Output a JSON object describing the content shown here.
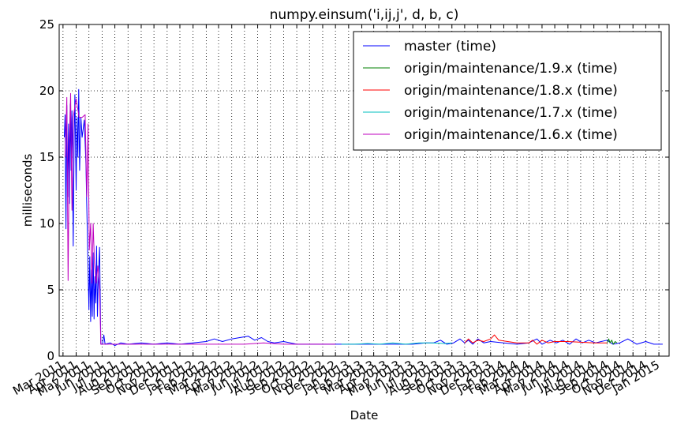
{
  "chart_data": {
    "type": "line",
    "title": "numpy.einsum('i,ij,j', d, b, c)",
    "xlabel": "Date",
    "ylabel": "milliseconds",
    "xlim": [
      "2011-02-20",
      "2015-01-25"
    ],
    "ylim": [
      0,
      25
    ],
    "yticks": [
      0,
      5,
      10,
      15,
      20,
      25
    ],
    "xticks": [
      {
        "date": "2011-03-01",
        "label": "Mar 2011"
      },
      {
        "date": "2011-04-01",
        "label": "Apr 2011"
      },
      {
        "date": "2011-05-01",
        "label": "May 2011"
      },
      {
        "date": "2011-06-01",
        "label": "Jun 2011"
      },
      {
        "date": "2011-07-01",
        "label": "Jul 2011"
      },
      {
        "date": "2011-08-01",
        "label": "Aug 2011"
      },
      {
        "date": "2011-09-01",
        "label": "Sep 2011"
      },
      {
        "date": "2011-10-01",
        "label": "Oct 2011"
      },
      {
        "date": "2011-11-01",
        "label": "Nov 2011"
      },
      {
        "date": "2011-12-01",
        "label": "Dec 2011"
      },
      {
        "date": "2012-01-01",
        "label": "Jan 2012"
      },
      {
        "date": "2012-02-01",
        "label": "Feb 2012"
      },
      {
        "date": "2012-03-01",
        "label": "Mar 2012"
      },
      {
        "date": "2012-04-01",
        "label": "Apr 2012"
      },
      {
        "date": "2012-05-01",
        "label": "May 2012"
      },
      {
        "date": "2012-06-01",
        "label": "Jun 2012"
      },
      {
        "date": "2012-07-01",
        "label": "Jul 2012"
      },
      {
        "date": "2012-08-01",
        "label": "Aug 2012"
      },
      {
        "date": "2012-09-01",
        "label": "Sep 2012"
      },
      {
        "date": "2012-10-01",
        "label": "Oct 2012"
      },
      {
        "date": "2012-11-01",
        "label": "Nov 2012"
      },
      {
        "date": "2012-12-01",
        "label": "Dec 2012"
      },
      {
        "date": "2013-01-01",
        "label": "Jan 2013"
      },
      {
        "date": "2013-02-01",
        "label": "Feb 2013"
      },
      {
        "date": "2013-03-01",
        "label": "Mar 2013"
      },
      {
        "date": "2013-04-01",
        "label": "Apr 2013"
      },
      {
        "date": "2013-05-01",
        "label": "May 2013"
      },
      {
        "date": "2013-06-01",
        "label": "Jun 2013"
      },
      {
        "date": "2013-07-01",
        "label": "Jul 2013"
      },
      {
        "date": "2013-08-01",
        "label": "Aug 2013"
      },
      {
        "date": "2013-09-01",
        "label": "Sep 2013"
      },
      {
        "date": "2013-10-01",
        "label": "Oct 2013"
      },
      {
        "date": "2013-11-01",
        "label": "Nov 2013"
      },
      {
        "date": "2013-12-01",
        "label": "Dec 2013"
      },
      {
        "date": "2014-01-01",
        "label": "Jan 2014"
      },
      {
        "date": "2014-02-01",
        "label": "Feb 2014"
      },
      {
        "date": "2014-03-01",
        "label": "Mar 2014"
      },
      {
        "date": "2014-04-01",
        "label": "Apr 2014"
      },
      {
        "date": "2014-05-01",
        "label": "May 2014"
      },
      {
        "date": "2014-06-01",
        "label": "Jun 2014"
      },
      {
        "date": "2014-07-01",
        "label": "Jul 2014"
      },
      {
        "date": "2014-08-01",
        "label": "Aug 2014"
      },
      {
        "date": "2014-09-01",
        "label": "Sep 2014"
      },
      {
        "date": "2014-10-01",
        "label": "Oct 2014"
      },
      {
        "date": "2014-11-01",
        "label": "Nov 2014"
      },
      {
        "date": "2014-12-01",
        "label": "Dec 2014"
      },
      {
        "date": "2015-01-01",
        "label": "Jan 2015"
      }
    ],
    "grid": true,
    "legend_position": "top-right",
    "series": [
      {
        "name": "master (time)",
        "color": "#0000ff",
        "points": [
          [
            "2011-03-04",
            16.5
          ],
          [
            "2011-03-06",
            18.2
          ],
          [
            "2011-03-08",
            9.6
          ],
          [
            "2011-03-10",
            18.9
          ],
          [
            "2011-03-12",
            12.0
          ],
          [
            "2011-03-14",
            17.5
          ],
          [
            "2011-03-16",
            11.5
          ],
          [
            "2011-03-18",
            19.0
          ],
          [
            "2011-03-20",
            14.0
          ],
          [
            "2011-03-22",
            18.5
          ],
          [
            "2011-03-25",
            8.3
          ],
          [
            "2011-03-27",
            16.0
          ],
          [
            "2011-03-29",
            19.7
          ],
          [
            "2011-04-01",
            12.5
          ],
          [
            "2011-04-03",
            18.0
          ],
          [
            "2011-04-05",
            15.0
          ],
          [
            "2011-04-07",
            20.1
          ],
          [
            "2011-04-09",
            14.0
          ],
          [
            "2011-04-12",
            18.0
          ],
          [
            "2011-04-15",
            16.5
          ],
          [
            "2011-04-20",
            17.8
          ],
          [
            "2011-04-24",
            14.5
          ],
          [
            "2011-04-28",
            8.0
          ],
          [
            "2011-05-01",
            3.5
          ],
          [
            "2011-05-03",
            7.5
          ],
          [
            "2011-05-05",
            2.6
          ],
          [
            "2011-05-07",
            6.5
          ],
          [
            "2011-05-09",
            3.0
          ],
          [
            "2011-05-11",
            7.8
          ],
          [
            "2011-05-13",
            2.8
          ],
          [
            "2011-05-15",
            6.0
          ],
          [
            "2011-05-17",
            4.0
          ],
          [
            "2011-05-19",
            8.3
          ],
          [
            "2011-05-21",
            3.0
          ],
          [
            "2011-05-23",
            6.0
          ],
          [
            "2011-05-26",
            8.2
          ],
          [
            "2011-05-29",
            0.9
          ],
          [
            "2011-06-02",
            0.9
          ],
          [
            "2011-06-05",
            1.6
          ],
          [
            "2011-06-08",
            0.9
          ],
          [
            "2011-06-20",
            1.0
          ],
          [
            "2011-07-01",
            0.8
          ],
          [
            "2011-07-15",
            1.0
          ],
          [
            "2011-08-01",
            0.9
          ],
          [
            "2011-09-01",
            1.0
          ],
          [
            "2011-10-01",
            0.9
          ],
          [
            "2011-11-01",
            1.0
          ],
          [
            "2011-12-01",
            0.9
          ],
          [
            "2012-01-01",
            1.0
          ],
          [
            "2012-02-01",
            1.1
          ],
          [
            "2012-02-20",
            1.3
          ],
          [
            "2012-03-10",
            1.1
          ],
          [
            "2012-04-01",
            1.3
          ],
          [
            "2012-04-20",
            1.4
          ],
          [
            "2012-05-10",
            1.5
          ],
          [
            "2012-05-25",
            1.2
          ],
          [
            "2012-06-10",
            1.4
          ],
          [
            "2012-06-25",
            1.1
          ],
          [
            "2012-07-10",
            1.0
          ],
          [
            "2012-08-01",
            1.1
          ],
          [
            "2012-09-01",
            0.9
          ],
          [
            "2012-10-01",
            0.9
          ],
          [
            "2012-11-01",
            0.9
          ],
          [
            "2012-12-01",
            0.9
          ],
          [
            "2013-01-01",
            0.9
          ],
          [
            "2013-02-01",
            0.9
          ],
          [
            "2013-03-01",
            0.9
          ],
          [
            "2013-04-01",
            0.9
          ],
          [
            "2013-05-01",
            0.9
          ],
          [
            "2013-06-01",
            0.9
          ],
          [
            "2013-07-01",
            1.0
          ],
          [
            "2013-07-20",
            1.0
          ],
          [
            "2013-08-05",
            1.2
          ],
          [
            "2013-08-20",
            0.9
          ],
          [
            "2013-09-05",
            1.0
          ],
          [
            "2013-09-20",
            1.3
          ],
          [
            "2013-10-01",
            1.0
          ],
          [
            "2013-10-10",
            1.2
          ],
          [
            "2013-10-20",
            0.9
          ],
          [
            "2013-11-01",
            1.3
          ],
          [
            "2013-11-15",
            1.0
          ],
          [
            "2013-12-01",
            1.1
          ],
          [
            "2014-01-01",
            1.0
          ],
          [
            "2014-02-01",
            0.9
          ],
          [
            "2014-03-01",
            1.0
          ],
          [
            "2014-03-20",
            1.3
          ],
          [
            "2014-04-01",
            0.9
          ],
          [
            "2014-04-20",
            1.2
          ],
          [
            "2014-05-05",
            1.0
          ],
          [
            "2014-05-20",
            1.2
          ],
          [
            "2014-06-05",
            0.9
          ],
          [
            "2014-06-20",
            1.3
          ],
          [
            "2014-07-05",
            1.0
          ],
          [
            "2014-07-20",
            1.2
          ],
          [
            "2014-08-05",
            1.0
          ],
          [
            "2014-09-01",
            1.2
          ],
          [
            "2014-09-15",
            0.9
          ],
          [
            "2014-10-01",
            1.0
          ],
          [
            "2014-10-20",
            1.3
          ],
          [
            "2014-11-10",
            0.9
          ],
          [
            "2014-12-01",
            1.1
          ],
          [
            "2014-12-20",
            0.9
          ],
          [
            "2015-01-10",
            0.9
          ]
        ]
      },
      {
        "name": "origin/maintenance/1.9.x (time)",
        "color": "#008000",
        "points": [
          [
            "2014-09-01",
            1.0
          ],
          [
            "2014-09-05",
            1.3
          ],
          [
            "2014-09-08",
            1.0
          ],
          [
            "2014-09-12",
            1.2
          ],
          [
            "2014-09-16",
            0.9
          ],
          [
            "2014-09-20",
            1.1
          ],
          [
            "2014-09-24",
            1.0
          ]
        ]
      },
      {
        "name": "origin/maintenance/1.8.x (time)",
        "color": "#ff0000",
        "points": [
          [
            "2013-10-01",
            1.0
          ],
          [
            "2013-10-10",
            1.3
          ],
          [
            "2013-10-20",
            1.0
          ],
          [
            "2013-11-01",
            1.2
          ],
          [
            "2013-11-15",
            1.1
          ],
          [
            "2013-12-01",
            1.3
          ],
          [
            "2013-12-10",
            1.6
          ],
          [
            "2013-12-20",
            1.2
          ],
          [
            "2014-01-10",
            1.1
          ],
          [
            "2014-02-01",
            1.0
          ],
          [
            "2014-03-01",
            1.0
          ],
          [
            "2014-03-10",
            1.2
          ],
          [
            "2014-03-20",
            0.9
          ],
          [
            "2014-04-01",
            1.2
          ],
          [
            "2014-04-15",
            1.0
          ],
          [
            "2014-05-01",
            1.1
          ],
          [
            "2014-06-01",
            1.1
          ],
          [
            "2014-07-01",
            1.05
          ],
          [
            "2014-08-01",
            1.0
          ],
          [
            "2014-09-01",
            1.0
          ]
        ]
      },
      {
        "name": "origin/maintenance/1.7.x (time)",
        "color": "#00bfbf",
        "points": [
          [
            "2012-12-15",
            0.9
          ],
          [
            "2013-01-15",
            0.9
          ],
          [
            "2013-02-15",
            0.95
          ],
          [
            "2013-03-15",
            0.9
          ],
          [
            "2013-04-15",
            1.0
          ],
          [
            "2013-05-15",
            0.9
          ],
          [
            "2013-06-15",
            1.0
          ],
          [
            "2013-07-15",
            1.0
          ],
          [
            "2013-08-15",
            0.95
          ],
          [
            "2013-09-01",
            1.0
          ]
        ]
      },
      {
        "name": "origin/maintenance/1.6.x (time)",
        "color": "#bf00bf",
        "points": [
          [
            "2011-03-06",
            15.0
          ],
          [
            "2011-03-10",
            19.5
          ],
          [
            "2011-03-13",
            5.7
          ],
          [
            "2011-03-16",
            16.0
          ],
          [
            "2011-03-19",
            19.8
          ],
          [
            "2011-03-22",
            11.0
          ],
          [
            "2011-03-25",
            18.0
          ],
          [
            "2011-04-01",
            19.4
          ],
          [
            "2011-04-08",
            18.0
          ],
          [
            "2011-04-15",
            18.0
          ],
          [
            "2011-04-22",
            18.2
          ],
          [
            "2011-04-26",
            12.0
          ],
          [
            "2011-04-29",
            17.5
          ],
          [
            "2011-05-02",
            8.0
          ],
          [
            "2011-05-05",
            10.0
          ],
          [
            "2011-05-08",
            5.5
          ],
          [
            "2011-05-11",
            10.0
          ],
          [
            "2011-05-14",
            7.0
          ],
          [
            "2011-05-18",
            5.5
          ],
          [
            "2011-05-22",
            6.8
          ],
          [
            "2011-05-26",
            5.0
          ],
          [
            "2011-05-29",
            0.9
          ],
          [
            "2011-07-01",
            0.9
          ],
          [
            "2011-09-01",
            0.9
          ],
          [
            "2011-11-01",
            0.9
          ],
          [
            "2012-01-01",
            0.9
          ],
          [
            "2012-03-01",
            0.9
          ],
          [
            "2012-05-01",
            0.9
          ],
          [
            "2012-06-15",
            1.0
          ],
          [
            "2012-08-01",
            0.9
          ],
          [
            "2012-10-01",
            0.9
          ],
          [
            "2012-12-01",
            0.9
          ]
        ]
      }
    ]
  }
}
